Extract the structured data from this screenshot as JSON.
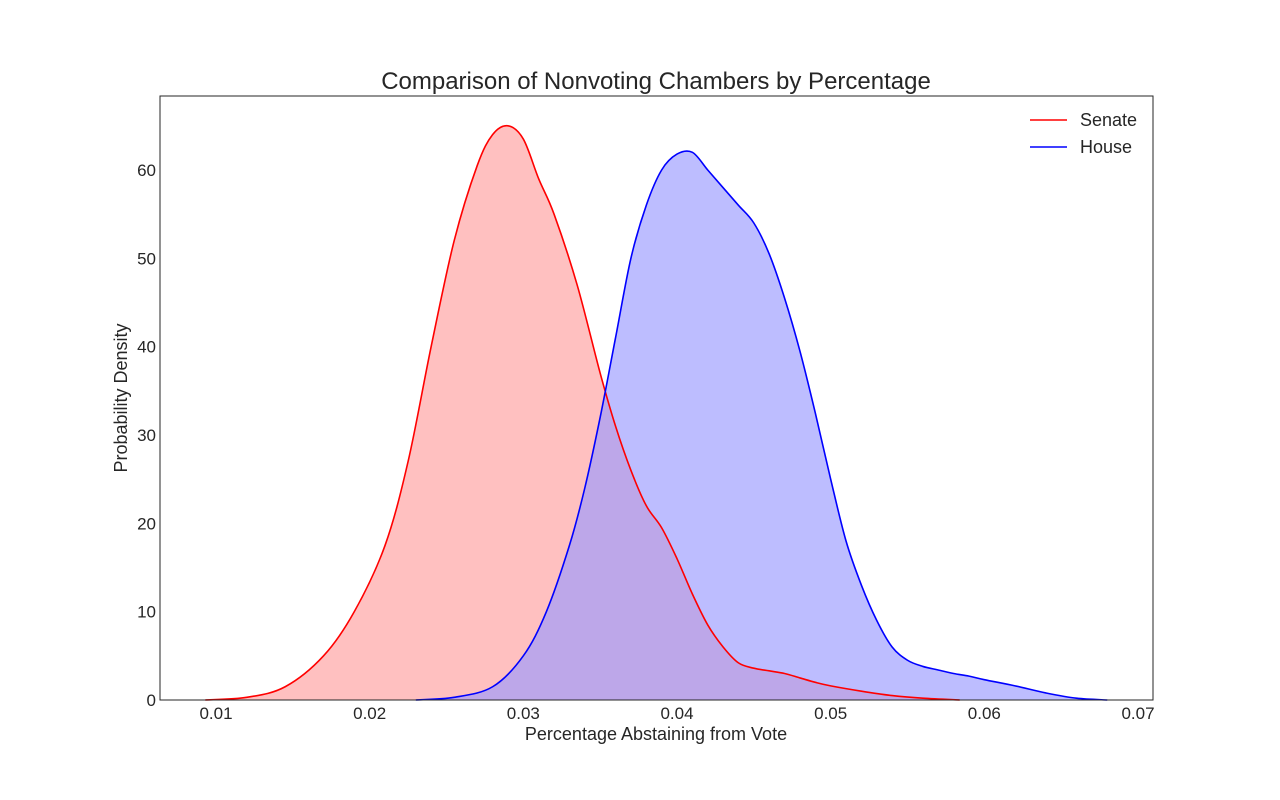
{
  "chart_data": {
    "type": "area",
    "title": "Comparison of Nonvoting Chambers by Percentage",
    "xlabel": "Percentage Abstaining from Vote",
    "ylabel": "Probability Density",
    "xlim": [
      0.006,
      0.07
    ],
    "ylim": [
      0,
      68
    ],
    "xticks": [
      "0.01",
      "0.02",
      "0.03",
      "0.04",
      "0.05",
      "0.06",
      "0.07"
    ],
    "yticks": [
      "0",
      "10",
      "20",
      "30",
      "40",
      "50",
      "60"
    ],
    "grid": false,
    "legend_position": "top-right",
    "series": [
      {
        "name": "Senate",
        "color": "#ff0000",
        "fill": "#ff9999",
        "fill_opacity": 0.62,
        "x": [
          0.0093,
          0.012,
          0.0145,
          0.017,
          0.019,
          0.021,
          0.0225,
          0.024,
          0.0255,
          0.027,
          0.028,
          0.029,
          0.03,
          0.031,
          0.032,
          0.0335,
          0.035,
          0.036,
          0.037,
          0.038,
          0.039,
          0.04,
          0.041,
          0.042,
          0.043,
          0.044,
          0.045,
          0.046,
          0.047,
          0.048,
          0.049,
          0.05,
          0.052,
          0.054,
          0.056,
          0.0584
        ],
        "y": [
          0,
          0.3,
          1.5,
          5,
          10,
          17.5,
          27,
          40,
          52,
          60.5,
          64,
          65,
          63.5,
          59,
          55,
          47,
          37,
          31,
          26,
          22,
          19.5,
          16,
          12,
          8.5,
          6,
          4.2,
          3.6,
          3.3,
          3,
          2.5,
          2,
          1.6,
          1,
          0.5,
          0.2,
          0
        ]
      },
      {
        "name": "House",
        "color": "#0000ff",
        "fill": "#9999ff",
        "fill_opacity": 0.65,
        "x": [
          0.023,
          0.0255,
          0.028,
          0.03,
          0.0315,
          0.033,
          0.034,
          0.035,
          0.036,
          0.037,
          0.038,
          0.039,
          0.04,
          0.041,
          0.042,
          0.043,
          0.044,
          0.045,
          0.046,
          0.047,
          0.048,
          0.049,
          0.05,
          0.051,
          0.052,
          0.053,
          0.054,
          0.055,
          0.056,
          0.057,
          0.058,
          0.059,
          0.06,
          0.062,
          0.064,
          0.066,
          0.068
        ],
        "y": [
          0,
          0.3,
          1.5,
          5,
          10,
          17.5,
          24,
          32,
          41,
          50,
          56,
          60,
          61.8,
          62,
          60,
          58,
          56,
          54,
          50.5,
          45.5,
          39.5,
          32.5,
          25,
          18,
          13,
          9,
          6,
          4.5,
          3.8,
          3.4,
          3,
          2.7,
          2.3,
          1.6,
          0.8,
          0.2,
          0
        ]
      }
    ]
  }
}
